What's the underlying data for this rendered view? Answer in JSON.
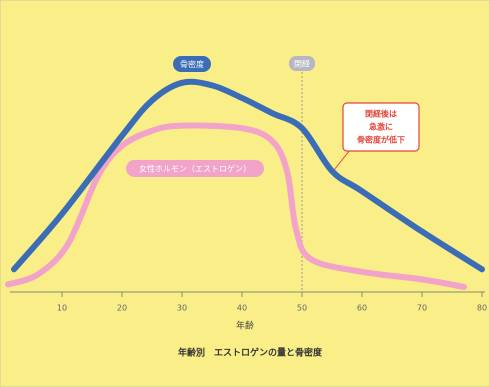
{
  "chart_data": {
    "type": "line",
    "title": "年齢別　エストロゲンの量と骨密度",
    "x_label": "年齢",
    "xlim": [
      0,
      80.5
    ],
    "xticks": [
      10,
      20,
      30,
      40,
      50,
      60,
      70,
      80
    ],
    "ylim": [
      0,
      100
    ],
    "series": [
      {
        "name": "骨密度",
        "color": "#3b6db6",
        "x": [
          2,
          10,
          20,
          25,
          30,
          35,
          40,
          45,
          50,
          55,
          60,
          70,
          80
        ],
        "values": [
          9,
          31,
          62,
          76,
          83,
          82,
          77,
          71,
          65,
          48,
          40,
          24,
          9
        ]
      },
      {
        "name": "女性ホルモン（エストロゲン）",
        "color": "#f2a3c9",
        "x": [
          1,
          6,
          11,
          16,
          20,
          25,
          30,
          40,
          45,
          47.5,
          49,
          51.5,
          60,
          70,
          77
        ],
        "values": [
          3,
          7,
          19,
          46,
          58,
          64,
          66,
          65,
          60,
          48,
          25,
          13,
          8,
          5,
          2
        ]
      }
    ],
    "annotations": [
      {
        "text": "閉経",
        "x": 50
      },
      {
        "text": [
          "閉経後は",
          "急激に",
          "骨密度が低下"
        ],
        "x": 55
      }
    ]
  }
}
